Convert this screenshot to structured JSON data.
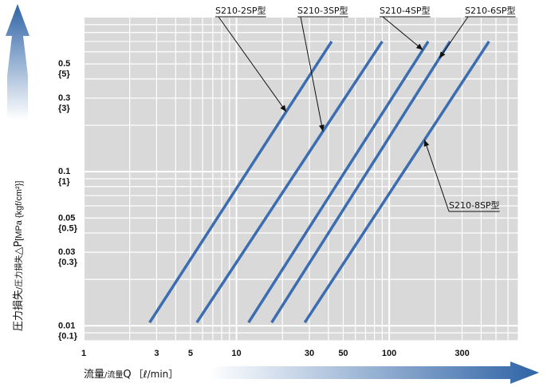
{
  "chart_data": {
    "type": "line",
    "x_scale": "log",
    "y_scale": "log",
    "xlim": [
      1,
      700
    ],
    "ylim": [
      0.008,
      1.0
    ],
    "grid": true,
    "x_ticks": [
      {
        "value": 1,
        "label": "1"
      },
      {
        "value": 3,
        "label": "3"
      },
      {
        "value": 5,
        "label": "5"
      },
      {
        "value": 10,
        "label": "10"
      },
      {
        "value": 30,
        "label": "30"
      },
      {
        "value": 50,
        "label": "50"
      },
      {
        "value": 100,
        "label": "100"
      },
      {
        "value": 300,
        "label": "300"
      }
    ],
    "y_ticks": [
      {
        "value": 0.5,
        "label": "0.5",
        "sub": "{5}"
      },
      {
        "value": 0.3,
        "label": "0.3",
        "sub": "{3}"
      },
      {
        "value": 0.1,
        "label": "0.1",
        "sub": "{1}"
      },
      {
        "value": 0.05,
        "label": "0.05",
        "sub": "{0.5}"
      },
      {
        "value": 0.03,
        "label": "0.03",
        "sub": "{0.3}"
      },
      {
        "value": 0.01,
        "label": "0.01",
        "sub": "{0.1}"
      }
    ],
    "ylabel": {
      "main": "圧力損失",
      "sub": "/圧力損失",
      "symbol": "△P",
      "unit": "[MPa {kgf/cm²}]"
    },
    "xlabel": {
      "main": "流量",
      "sub": "/流量",
      "symbol": "Q",
      "unit": "［ℓ/min］"
    },
    "series": [
      {
        "name": "S210-2SP型",
        "x": [
          2.7,
          42
        ],
        "y": [
          0.0105,
          0.7
        ]
      },
      {
        "name": "S210-3SP型",
        "x": [
          5.5,
          90
        ],
        "y": [
          0.0105,
          0.7
        ]
      },
      {
        "name": "S210-4SP型",
        "x": [
          12,
          180
        ],
        "y": [
          0.0105,
          0.7
        ]
      },
      {
        "name": "S210-6SP型",
        "x": [
          17,
          250
        ],
        "y": [
          0.0105,
          0.7
        ]
      },
      {
        "name": "S210-8SP型",
        "x": [
          28,
          450
        ],
        "y": [
          0.0105,
          0.7
        ]
      }
    ]
  },
  "colors": {
    "line": "#3b6db0",
    "grid_bg": "#d9d9d9",
    "grid_line": "#ffffff",
    "arrow": "#2e63a6"
  }
}
